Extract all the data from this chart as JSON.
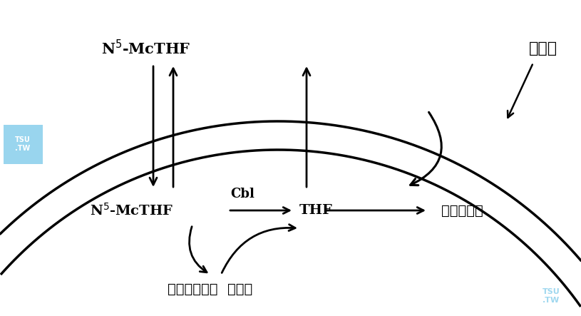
{
  "bg_color": "#ffffff",
  "text_color": "#000000",
  "label_ximen": "细胞膜",
  "label_n5_top": "N$^5$-McTHF",
  "label_n5_inside": "N$^5$-McTHF",
  "label_thf": "THF",
  "label_combined": "结合的叶酸",
  "label_cbl": "Cbl",
  "label_homocysteine": "同型半胱氨酸",
  "label_methionine": "蛋氨酸"
}
